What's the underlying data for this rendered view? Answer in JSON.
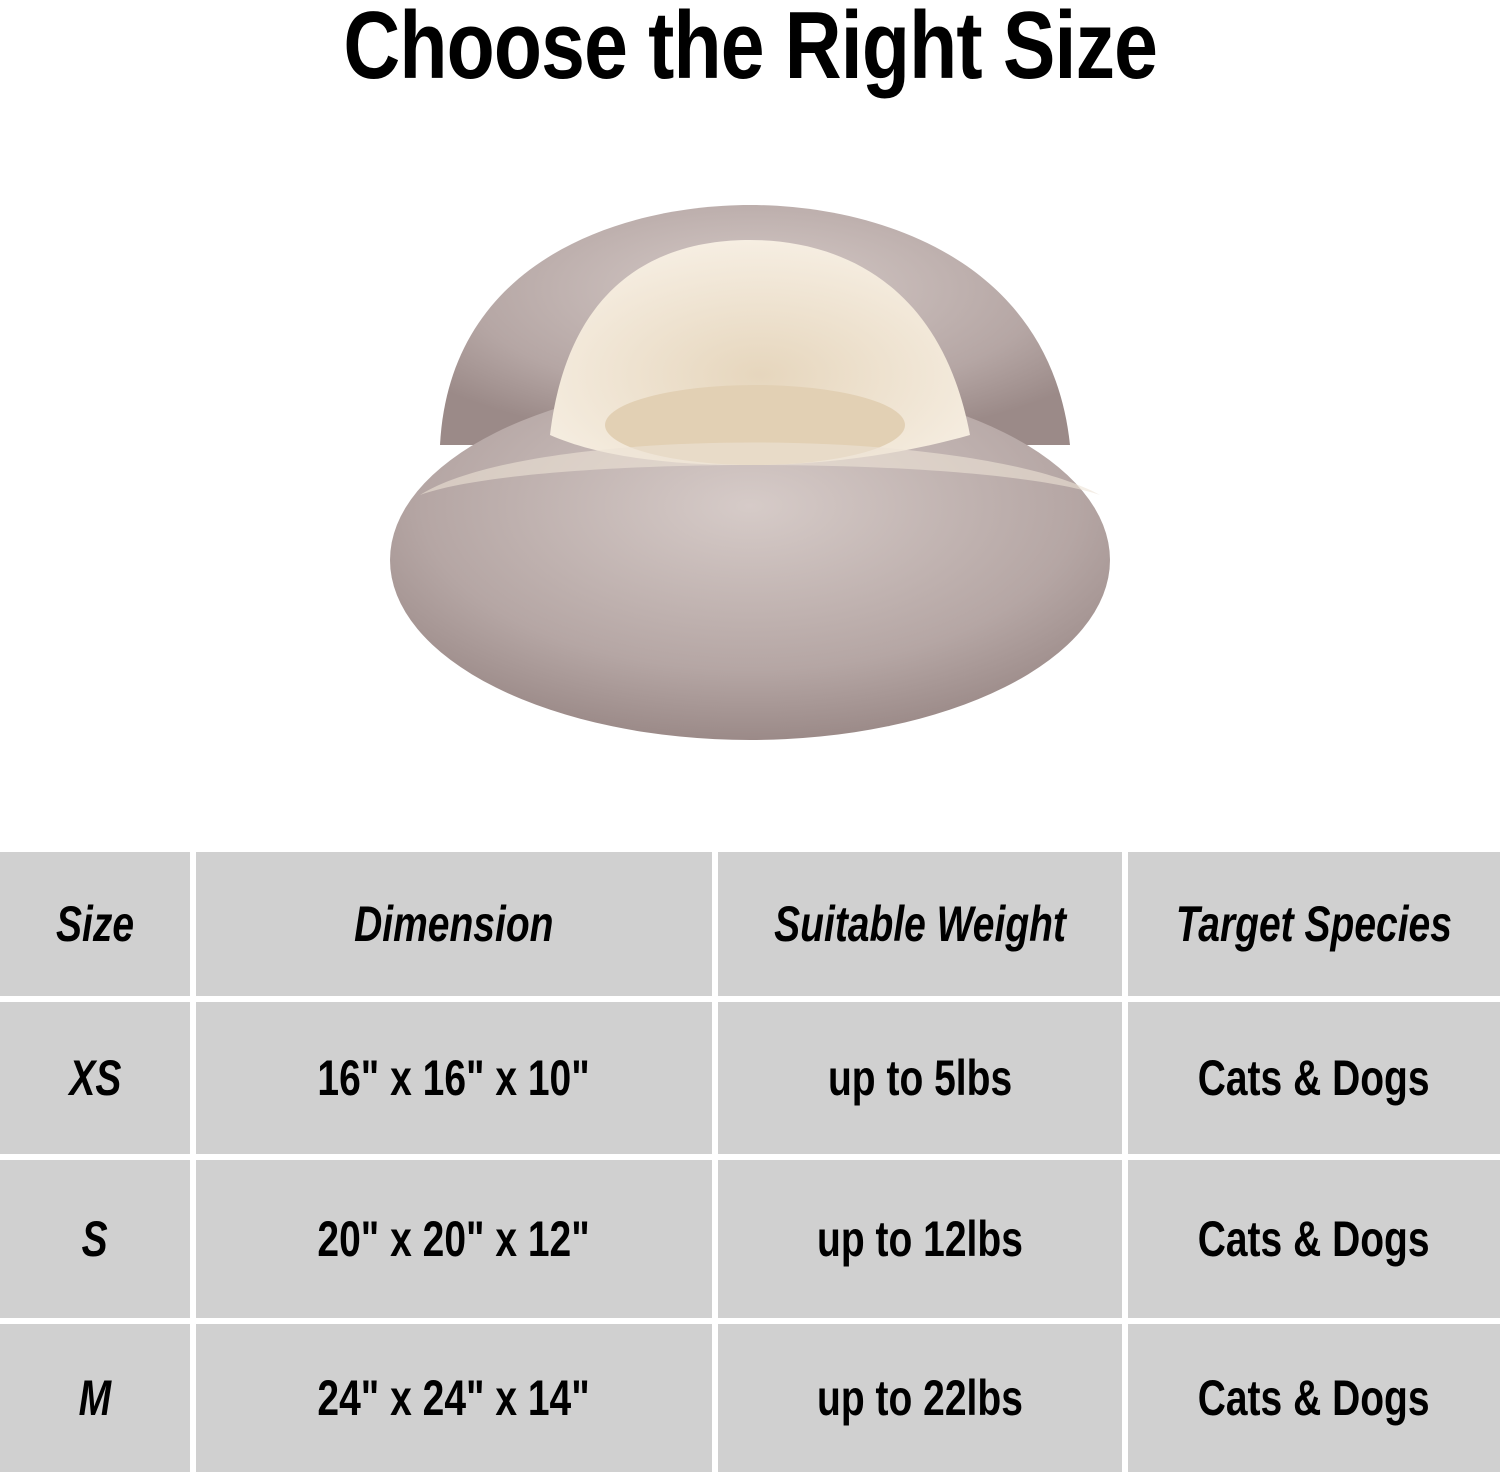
{
  "title": "Choose the Right Size",
  "product_image": {
    "icon": "pet-bed-cave-icon",
    "colors": {
      "outer": "#b9aba9",
      "inner": "#f1e7d7"
    }
  },
  "table": {
    "headers": [
      "Size",
      "Dimension",
      "Suitable Weight",
      "Target Species"
    ],
    "rows": [
      [
        "XS",
        "16\" x 16\" x 10\"",
        "up to 5lbs",
        "Cats & Dogs"
      ],
      [
        "S",
        "20\" x 20\" x 12\"",
        "up to 12lbs",
        "Cats & Dogs"
      ],
      [
        "M",
        "24\" x 24\" x 14\"",
        "up to 22lbs",
        "Cats & Dogs"
      ]
    ],
    "cell_color": "#d0d0d0"
  }
}
